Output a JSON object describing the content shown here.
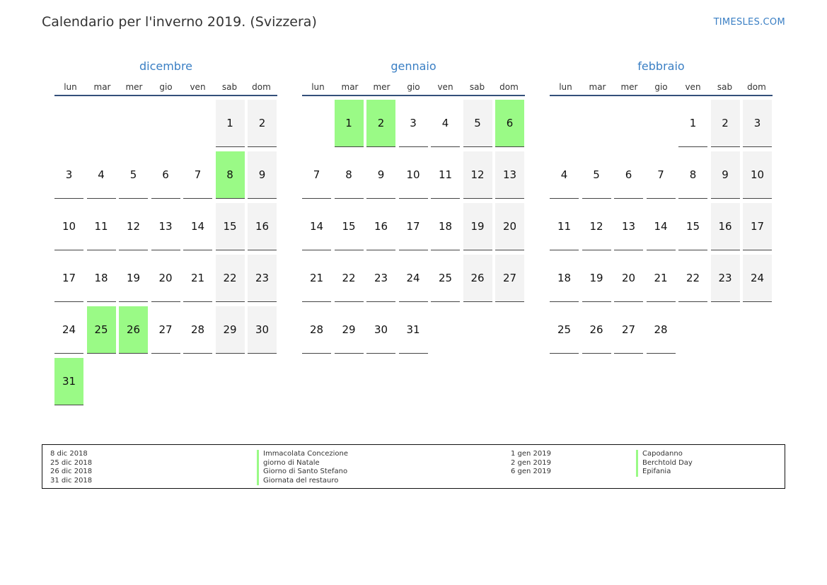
{
  "header": {
    "title": "Calendario per l'inverno 2019. (Svizzera)",
    "site": "TIMESLES.COM"
  },
  "colors": {
    "accent": "#3a7fc4",
    "holiday": "#9afa86",
    "weekend": "#f3f3f3",
    "rule": "#34507a"
  },
  "weekdays": [
    "lun",
    "mar",
    "mer",
    "gio",
    "ven",
    "sab",
    "dom"
  ],
  "months": [
    {
      "name": "dicembre",
      "start_weekday": 5,
      "days": 31,
      "holidays": [
        8,
        25,
        26,
        31
      ]
    },
    {
      "name": "gennaio",
      "start_weekday": 1,
      "days": 31,
      "holidays": [
        1,
        2,
        6
      ]
    },
    {
      "name": "febbraio",
      "start_weekday": 4,
      "days": 28,
      "holidays": []
    }
  ],
  "legend": {
    "left": {
      "dates": [
        "8 dic 2018",
        "25 dic 2018",
        "26 dic 2018",
        "31 dic 2018"
      ],
      "names": [
        "Immacolata Concezione",
        "giorno di Natale",
        "Giorno di Santo Stefano",
        "Giornata del restauro"
      ]
    },
    "right": {
      "dates": [
        "1 gen 2019",
        "2 gen 2019",
        "6 gen 2019"
      ],
      "names": [
        "Capodanno",
        "Berchtold Day",
        "Epifania"
      ]
    }
  }
}
